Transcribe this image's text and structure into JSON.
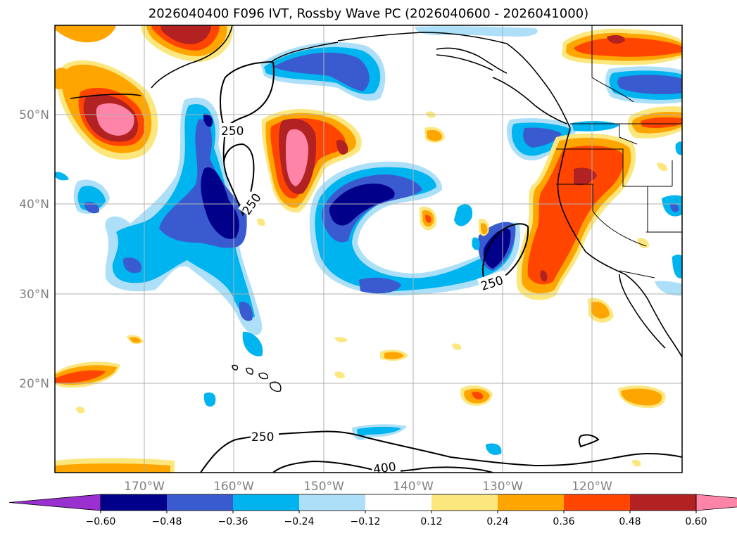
{
  "title": "2026040400 F096 IVT, Rossby Wave PC (2026040600 - 2026041000)",
  "map": {
    "lon_ticks": [
      "170°W",
      "160°W",
      "150°W",
      "140°W",
      "130°W",
      "120°W"
    ],
    "lat_ticks": [
      "50°N",
      "40°N",
      "30°N",
      "20°N"
    ],
    "gridlines": true
  },
  "ivt_contours": [
    {
      "label": "250"
    },
    {
      "label": "250"
    },
    {
      "label": "250"
    },
    {
      "label": "400"
    }
  ],
  "colorbar": {
    "ticks": [
      "−0.60",
      "−0.48",
      "−0.36",
      "−0.24",
      "−0.12",
      "0.12",
      "0.24",
      "0.36",
      "0.48",
      "0.60"
    ],
    "colors": [
      "#9b30d0",
      "#00008b",
      "#3a5bcf",
      "#00b4f0",
      "#ade0f8",
      "#ffffff",
      "#fbe77e",
      "#ffa500",
      "#ff4500",
      "#b22222",
      "#ff85a8"
    ],
    "extend": "both"
  }
}
